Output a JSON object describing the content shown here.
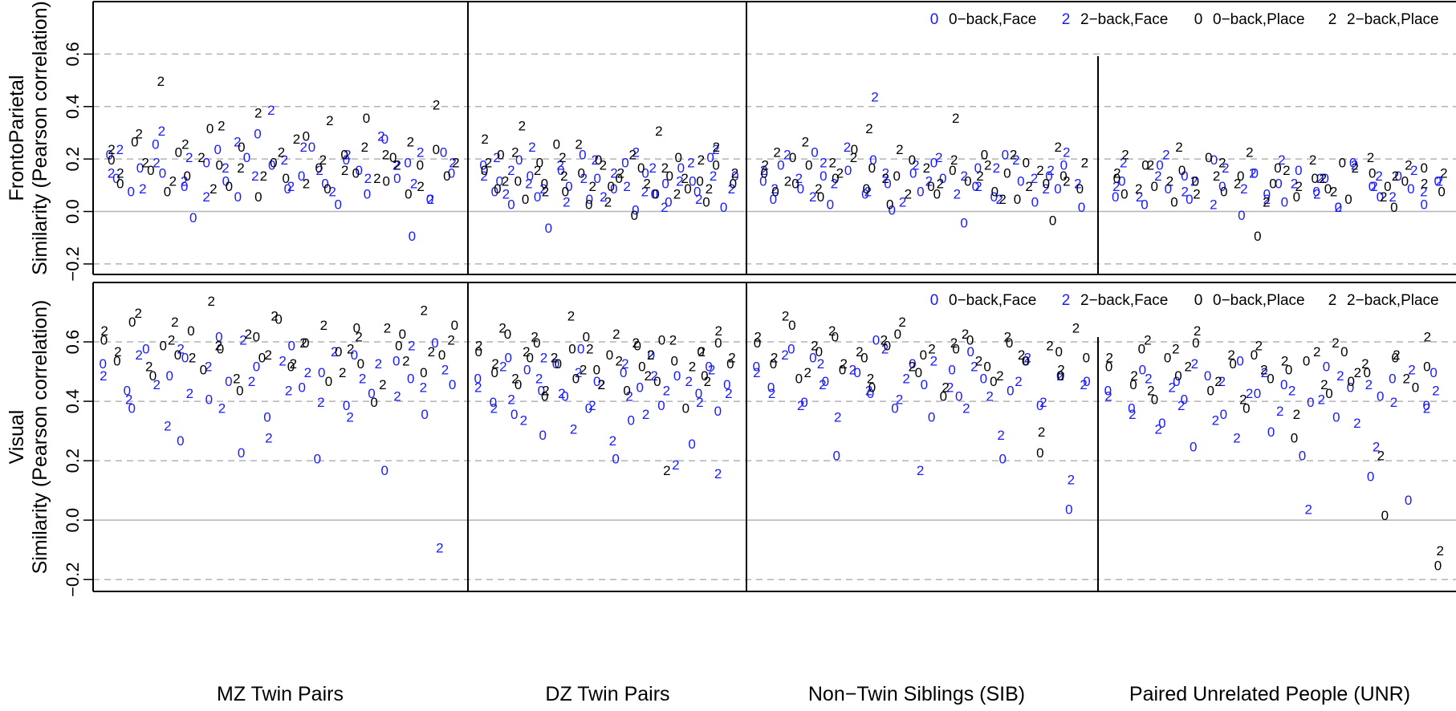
{
  "colors": {
    "face": "#1a1aff",
    "place": "#000000",
    "grid": "#b3b3b3",
    "zero_line": "#b3b3b3",
    "axis": "#000000"
  },
  "groups": [
    "MZ Twin Pairs",
    "DZ Twin Pairs",
    "Non−Twin Siblings (SIB)",
    "Paired Unrelated People (UNR)"
  ],
  "legend": {
    "items": [
      {
        "symbol": "0",
        "label": "0−back,Face",
        "color_key": "face"
      },
      {
        "symbol": "2",
        "label": "2−back,Face",
        "color_key": "face"
      },
      {
        "symbol": "0",
        "label": "0−back,Place",
        "color_key": "place"
      },
      {
        "symbol": "2",
        "label": "2−back,Place",
        "color_key": "place"
      }
    ]
  },
  "chart_data": [
    {
      "type": "scatter",
      "panel": "FrontoParietal",
      "ylabel_line1": "FrontoParietal",
      "ylabel_line2": "Similarity (Pearson correlation)",
      "ylim": [
        -0.24,
        0.8
      ],
      "yticks": [
        -0.2,
        0.0,
        0.2,
        0.4,
        0.6
      ],
      "ytick_labels": [
        "−0.2",
        "0.0",
        "0.2",
        "0.4",
        "0.6"
      ],
      "grid_dashed": [
        -0.2,
        0.2,
        0.4,
        0.6
      ],
      "grid_solid": [
        0.0
      ],
      "legend_placement": "top-right",
      "series": [
        {
          "name": "0−back,Face",
          "marker": "0",
          "color_key": "face",
          "group_values": [
            [
              0.22,
              0.13,
              0.08,
              0.17,
              0.26,
              0.15,
              0.1,
              -0.02,
              0.19,
              0.24,
              0.12,
              0.06,
              0.21,
              0.3,
              0.18,
              0.09,
              0.14,
              0.25,
              0.11,
              0.03,
              0.2,
              0.16,
              0.07,
              0.28,
              0.13,
              0.19,
              -0.09,
              0.05,
              0.23,
              0.15
            ],
            [
              0.18,
              0.08,
              0.12,
              0.03,
              0.2,
              0.14,
              0.06,
              -0.06,
              0.16,
              0.1,
              0.22,
              0.05,
              0.13,
              0.09,
              0.19,
              0.01,
              0.15,
              0.07,
              0.11,
              0.04,
              0.17,
              0.12,
              0.08,
              0.21,
              0.02,
              0.14
            ],
            [
              0.12,
              0.05,
              0.18,
              0.09,
              0.23,
              0.14,
              0.03,
              0.16,
              0.07,
              0.2,
              0.11,
              0.01,
              0.15,
              0.08,
              0.19,
              0.13,
              -0.04,
              0.1,
              0.17,
              0.06,
              0.22,
              0.12,
              0.04,
              0.14,
              0.09,
              0.18,
              0.02
            ],
            [
              0.06,
              0.12,
              0.03,
              0.18,
              0.09,
              0.14,
              0.05,
              0.2,
              0.1,
              -0.01,
              0.15,
              0.07,
              0.11,
              0.04,
              0.16,
              0.08,
              0.13,
              0.02,
              0.19,
              0.1,
              0.06,
              0.14,
              0.09,
              0.03,
              0.12
            ]
          ]
        },
        {
          "name": "2−back,Face",
          "marker": "2",
          "color_key": "face",
          "group_values": [
            [
              0.15,
              0.24,
              0.09,
              0.19,
              0.31,
              0.12,
              0.21,
              0.06,
              0.17,
              0.27,
              0.14,
              0.39,
              0.2,
              0.1,
              0.25,
              0.16,
              0.08,
              0.22,
              0.13,
              0.29,
              0.18,
              0.11,
              0.23,
              0.05,
              0.19
            ],
            [
              0.14,
              0.21,
              0.07,
              0.16,
              0.11,
              0.25,
              0.09,
              0.18,
              0.04,
              0.13,
              0.2,
              0.06,
              0.15,
              0.1,
              0.23,
              0.08,
              0.17,
              0.02,
              0.12,
              0.19,
              0.05,
              0.14,
              0.24,
              0.09
            ],
            [
              0.16,
              0.09,
              0.22,
              0.13,
              0.06,
              0.19,
              0.11,
              0.25,
              0.08,
              0.44,
              0.15,
              0.04,
              0.18,
              0.12,
              0.21,
              0.07,
              0.14,
              0.1,
              0.17,
              0.05,
              0.2,
              0.13,
              0.09,
              0.16,
              0.23,
              0.11
            ],
            [
              0.1,
              0.19,
              0.06,
              0.14,
              0.22,
              0.08,
              0.12,
              0.03,
              0.17,
              0.09,
              0.15,
              0.05,
              0.2,
              0.11,
              0.07,
              0.13,
              0.02,
              0.18,
              0.1,
              0.14,
              0.06,
              0.16,
              0.08,
              0.12
            ]
          ]
        },
        {
          "name": "0−back,Place",
          "marker": "0",
          "color_key": "place",
          "group_values": [
            [
              0.2,
              0.11,
              0.27,
              0.16,
              0.08,
              0.23,
              0.14,
              0.32,
              0.18,
              0.1,
              0.25,
              0.06,
              0.19,
              0.13,
              0.29,
              0.17,
              0.09,
              0.22,
              0.15,
              0.36,
              0.12,
              0.21,
              0.07,
              0.18,
              0.24,
              0.14
            ],
            [
              0.16,
              0.09,
              0.22,
              0.12,
              0.05,
              0.19,
              0.11,
              0.26,
              0.08,
              0.15,
              0.03,
              0.2,
              0.1,
              0.13,
              -0.01,
              0.17,
              0.07,
              0.14,
              0.21,
              0.09,
              0.12,
              0.04,
              0.18,
              0.11
            ],
            [
              0.15,
              0.08,
              0.21,
              0.11,
              0.18,
              0.06,
              0.13,
              0.24,
              0.09,
              0.17,
              0.03,
              0.14,
              0.2,
              0.1,
              0.07,
              0.16,
              0.12,
              0.22,
              0.08,
              0.15,
              0.05,
              0.19,
              0.11,
              -0.03,
              0.14,
              0.09
            ],
            [
              0.13,
              0.07,
              0.18,
              0.1,
              0.04,
              0.16,
              0.12,
              0.21,
              0.08,
              0.14,
              -0.09,
              0.11,
              0.17,
              0.06,
              0.13,
              0.09,
              0.19,
              0.05,
              0.15,
              0.1,
              0.02,
              0.12,
              0.17,
              0.08
            ]
          ]
        },
        {
          "name": "2−back,Place",
          "marker": "2",
          "color_key": "place",
          "group_values": [
            [
              0.24,
              0.15,
              0.3,
              0.19,
              0.5,
              0.12,
              0.26,
              0.21,
              0.09,
              0.33,
              0.17,
              0.38,
              0.14,
              0.23,
              0.28,
              0.11,
              0.2,
              0.35,
              0.16,
              0.25,
              0.13,
              0.22,
              0.18,
              0.27,
              0.1,
              0.41,
              0.19
            ],
            [
              0.28,
              0.19,
              0.12,
              0.23,
              0.33,
              0.16,
              0.08,
              0.21,
              0.14,
              0.26,
              0.1,
              0.18,
              0.04,
              0.15,
              0.22,
              0.11,
              0.31,
              0.17,
              0.07,
              0.13,
              0.2,
              0.09,
              0.25,
              0.15
            ],
            [
              0.18,
              0.23,
              0.12,
              0.27,
              0.09,
              0.19,
              0.15,
              0.21,
              0.32,
              0.13,
              0.24,
              0.07,
              0.17,
              0.11,
              0.2,
              0.36,
              0.14,
              0.18,
              0.05,
              0.22,
              0.1,
              0.16,
              0.25,
              0.12,
              0.19
            ],
            [
              0.15,
              0.22,
              0.09,
              0.18,
              0.12,
              0.25,
              0.07,
              0.14,
              0.19,
              0.11,
              0.23,
              0.04,
              0.16,
              0.1,
              0.2,
              0.13,
              0.08,
              0.17,
              0.21,
              0.06,
              0.14,
              0.18,
              0.11,
              0.15
            ]
          ]
        }
      ]
    },
    {
      "type": "scatter",
      "panel": "Visual",
      "ylabel_line1": "Visual",
      "ylabel_line2": "Similarity (Pearson correlation)",
      "ylim": [
        -0.24,
        0.8
      ],
      "yticks": [
        -0.2,
        0.0,
        0.2,
        0.4,
        0.6
      ],
      "ytick_labels": [
        "−0.2",
        "0.0",
        "0.2",
        "0.4",
        "0.6"
      ],
      "grid_dashed": [
        -0.2,
        0.2,
        0.4,
        0.6
      ],
      "grid_solid": [
        0.0
      ],
      "legend_placement": "top-right",
      "series": [
        {
          "name": "0−back,Face",
          "marker": "0",
          "color_key": "face",
          "group_values": [
            [
              0.53,
              0.44,
              0.38,
              0.58,
              0.49,
              0.27,
              0.55,
              0.41,
              0.62,
              0.47,
              0.23,
              0.52,
              0.35,
              0.59,
              0.45,
              0.21,
              0.5,
              0.39,
              0.56,
              0.43,
              0.17,
              0.54,
              0.48,
              0.36,
              0.6,
              0.46
            ],
            [
              0.48,
              0.4,
              0.55,
              0.36,
              0.51,
              0.44,
              0.29,
              0.53,
              0.42,
              0.58,
              0.38,
              0.47,
              0.21,
              0.5,
              0.34,
              0.45,
              0.56,
              0.39,
              0.49,
              0.26,
              0.43,
              0.52,
              0.37,
              0.46
            ],
            [
              0.52,
              0.45,
              0.58,
              0.4,
              0.55,
              0.47,
              0.22,
              0.5,
              0.43,
              0.61,
              0.38,
              0.53,
              0.46,
              0.35,
              0.51,
              0.42,
              0.57,
              0.48,
              0.21,
              0.44,
              0.54,
              0.39,
              0.49,
              0.04,
              0.47
            ],
            [
              0.44,
              0.38,
              0.51,
              0.33,
              0.47,
              0.41,
              0.25,
              0.49,
              0.36,
              0.54,
              0.43,
              0.3,
              0.46,
              0.22,
              0.4,
              0.52,
              0.35,
              0.45,
              0.15,
              0.42,
              0.48,
              0.07,
              0.39,
              0.5
            ]
          ]
        },
        {
          "name": "2−back,Face",
          "marker": "2",
          "color_key": "face",
          "group_values": [
            [
              0.49,
              0.41,
              0.56,
              0.46,
              0.32,
              0.58,
              0.43,
              0.52,
              0.38,
              0.61,
              0.47,
              0.28,
              0.54,
              0.44,
              0.5,
              0.4,
              0.57,
              0.35,
              0.48,
              0.53,
              0.42,
              0.59,
              0.45,
              -0.09,
              0.51
            ],
            [
              0.45,
              0.38,
              0.52,
              0.41,
              0.34,
              0.48,
              0.55,
              0.43,
              0.31,
              0.5,
              0.39,
              0.46,
              0.27,
              0.53,
              0.42,
              0.36,
              0.49,
              0.44,
              0.19,
              0.47,
              0.4,
              0.51,
              0.16,
              0.43
            ],
            [
              0.5,
              0.43,
              0.56,
              0.39,
              0.53,
              0.46,
              0.35,
              0.51,
              0.44,
              0.58,
              0.41,
              0.48,
              0.17,
              0.54,
              0.45,
              0.38,
              0.52,
              0.42,
              0.29,
              0.47,
              0.55,
              0.4,
              0.49,
              0.14,
              0.46
            ],
            [
              0.42,
              0.36,
              0.48,
              0.31,
              0.45,
              0.39,
              0.53,
              0.34,
              0.47,
              0.28,
              0.43,
              0.5,
              0.37,
              0.44,
              0.04,
              0.41,
              0.49,
              0.33,
              0.46,
              0.25,
              0.4,
              0.51,
              0.38,
              0.44
            ]
          ]
        },
        {
          "name": "0−back,Place",
          "marker": "0",
          "color_key": "place",
          "group_values": [
            [
              0.61,
              0.54,
              0.67,
              0.49,
              0.59,
              0.56,
              0.64,
              0.51,
              0.58,
              0.44,
              0.62,
              0.55,
              0.68,
              0.52,
              0.6,
              0.47,
              0.57,
              0.65,
              0.53,
              0.4,
              0.59,
              0.63,
              0.5,
              0.56,
              0.66
            ],
            [
              0.57,
              0.5,
              0.63,
              0.46,
              0.55,
              0.6,
              0.42,
              0.53,
              0.58,
              0.48,
              0.62,
              0.51,
              0.56,
              0.44,
              0.59,
              0.52,
              0.47,
              0.61,
              0.54,
              0.38,
              0.57,
              0.49,
              0.6,
              0.53
            ],
            [
              0.6,
              0.53,
              0.66,
              0.48,
              0.57,
              0.62,
              0.51,
              0.55,
              0.45,
              0.59,
              0.63,
              0.5,
              0.56,
              0.42,
              0.58,
              0.61,
              0.52,
              0.47,
              0.6,
              0.54,
              0.23,
              0.57,
              0.49,
              0.55
            ],
            [
              0.52,
              0.46,
              0.58,
              0.41,
              0.55,
              0.49,
              0.6,
              0.44,
              0.53,
              0.38,
              0.56,
              0.48,
              0.51,
              0.28,
              0.54,
              0.43,
              0.57,
              0.47,
              0.5,
              0.02,
              0.55,
              0.45,
              0.52,
              -0.15
            ]
          ]
        },
        {
          "name": "2−back,Place",
          "marker": "2",
          "color_key": "place",
          "group_values": [
            [
              0.64,
              0.57,
              0.7,
              0.52,
              0.61,
              0.67,
              0.55,
              0.74,
              0.59,
              0.48,
              0.63,
              0.56,
              0.69,
              0.53,
              0.6,
              0.66,
              0.5,
              0.58,
              0.62,
              0.46,
              0.65,
              0.54,
              0.71,
              0.57,
              0.61
            ],
            [
              0.59,
              0.53,
              0.65,
              0.48,
              0.57,
              0.62,
              0.44,
              0.55,
              0.69,
              0.51,
              0.58,
              0.46,
              0.63,
              0.54,
              0.6,
              0.49,
              0.56,
              0.17,
              0.61,
              0.52,
              0.57,
              0.47,
              0.64,
              0.55
            ],
            [
              0.62,
              0.55,
              0.69,
              0.5,
              0.59,
              0.64,
              0.53,
              0.57,
              0.48,
              0.61,
              0.67,
              0.52,
              0.58,
              0.45,
              0.6,
              0.63,
              0.54,
              0.49,
              0.62,
              0.56,
              0.3,
              0.59,
              0.51,
              0.65
            ],
            [
              0.55,
              0.49,
              0.61,
              0.44,
              0.58,
              0.52,
              0.64,
              0.47,
              0.56,
              0.41,
              0.59,
              0.51,
              0.54,
              0.36,
              0.57,
              0.46,
              0.6,
              0.5,
              0.53,
              0.22,
              0.56,
              0.48,
              0.62,
              -0.1
            ]
          ]
        }
      ]
    }
  ]
}
